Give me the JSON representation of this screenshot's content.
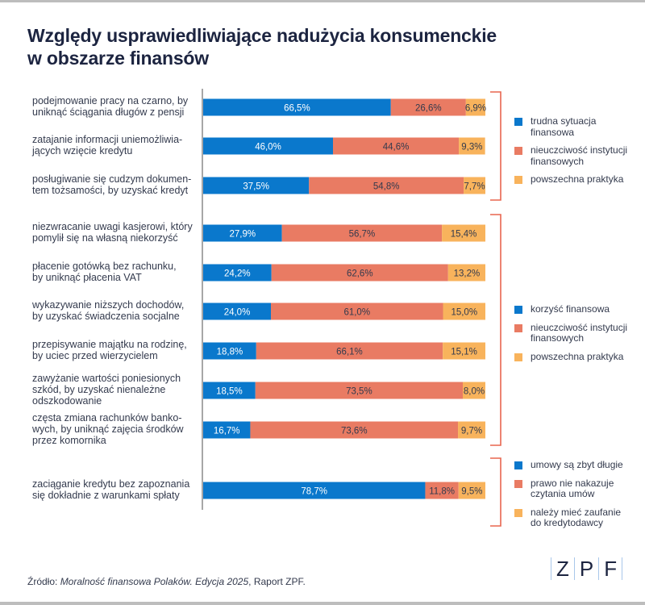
{
  "title": "Względy usprawiedliwiające nadużycia konsumenckie w obszarze finansów",
  "title_lines": [
    "Względy usprawiedliwiające nadużycia konsumenckie",
    "w obszarze finansów"
  ],
  "colors": {
    "blue": "#0a78cc",
    "salmon": "#e97b63",
    "amber": "#f8b35c",
    "bracket": "#e8664f",
    "axis": "#8a8a8a"
  },
  "chart_data": {
    "type": "bar",
    "orientation": "horizontal",
    "stacked": true,
    "title": "Względy usprawiedliwiające nadużycia konsumenckie w obszarze finansów",
    "xlabel": "",
    "ylabel": "",
    "xlim": [
      0,
      100
    ],
    "unit": "%",
    "grid": false,
    "categories": [
      [
        "podejmowanie pracy na czarno, by",
        "uniknąć ściągania długów z pensji"
      ],
      [
        "zatajanie informacji uniemożliwia-",
        "jących wzięcie kredytu"
      ],
      [
        "posługiwanie się cudzym dokumen-",
        "tem tożsamości, by uzyskać kredyt"
      ],
      [
        "niezwracanie uwagi kasjerowi, który",
        "pomylił się na własną niekorzyść"
      ],
      [
        "płacenie gotówką bez rachunku,",
        "by uniknąć płacenia VAT"
      ],
      [
        "wykazywanie niższych dochodów,",
        "by uzyskać świadczenia socjalne"
      ],
      [
        "przepisywanie majątku na rodzinę,",
        "by uciec przed wierzycielem"
      ],
      [
        "zawyżanie wartości poniesionych",
        "szkód, by uzyskać nienależne",
        "odszkodowanie"
      ],
      [
        "częsta zmiana rachunków banko-",
        "wych, by uniknąć zajęcia środków",
        "przez komornika"
      ],
      [
        "zaciąganie kredytu bez zapoznania",
        "się dokładnie z warunkami spłaty"
      ]
    ],
    "series": [
      {
        "name": "segment 1 (blue)",
        "values": [
          66.5,
          46.0,
          37.5,
          27.9,
          24.2,
          24.0,
          18.8,
          18.5,
          16.7,
          78.7
        ]
      },
      {
        "name": "segment 2 (salmon)",
        "values": [
          26.6,
          44.6,
          54.8,
          56.7,
          62.6,
          61.0,
          66.1,
          73.5,
          73.6,
          11.8
        ]
      },
      {
        "name": "segment 3 (amber)",
        "values": [
          6.9,
          9.3,
          7.7,
          15.4,
          13.2,
          15.0,
          15.1,
          8.0,
          9.7,
          9.5
        ]
      }
    ],
    "data_labels": [
      [
        "66,5%",
        "26,6%",
        "6,9%"
      ],
      [
        "46,0%",
        "44,6%",
        "9,3%"
      ],
      [
        "37,5%",
        "54,8%",
        "7,7%"
      ],
      [
        "27,9%",
        "56,7%",
        "15,4%"
      ],
      [
        "24,2%",
        "62,6%",
        "13,2%"
      ],
      [
        "24,0%",
        "61,0%",
        "15,0%"
      ],
      [
        "18,8%",
        "66,1%",
        "15,1%"
      ],
      [
        "18,5%",
        "73,5%",
        "8,0%"
      ],
      [
        "16,7%",
        "73,6%",
        "9,7%"
      ],
      [
        "78,7%",
        "11,8%",
        "9,5%"
      ]
    ],
    "groups": [
      {
        "rows": [
          0,
          1,
          2
        ],
        "legend": [
          "trudna sytuacja finansowa",
          "nieuczciwość instytucji finansowych",
          "powszechna praktyka"
        ]
      },
      {
        "rows": [
          3,
          4,
          5,
          6,
          7,
          8
        ],
        "legend": [
          "korzyść finansowa",
          "nieuczciwość instytucji finansowych",
          "powszechna praktyka"
        ]
      },
      {
        "rows": [
          9
        ],
        "legend": [
          "umowy są zbyt długie",
          "prawo nie nakazuje czytania umów",
          "należy mieć zaufanie do kredytodawcy"
        ]
      }
    ]
  },
  "legends": [
    {
      "items": [
        {
          "lines": [
            "trudna sytuacja",
            "finansowa"
          ],
          "color": "#0a78cc"
        },
        {
          "lines": [
            "nieuczciwość instytucji",
            "finansowych"
          ],
          "color": "#e97b63"
        },
        {
          "lines": [
            "powszechna praktyka"
          ],
          "color": "#f8b35c"
        }
      ]
    },
    {
      "items": [
        {
          "lines": [
            "korzyść finansowa"
          ],
          "color": "#0a78cc"
        },
        {
          "lines": [
            "nieuczciwość instytucji",
            "finansowych"
          ],
          "color": "#e97b63"
        },
        {
          "lines": [
            "powszechna praktyka"
          ],
          "color": "#f8b35c"
        }
      ]
    },
    {
      "items": [
        {
          "lines": [
            "umowy są zbyt długie"
          ],
          "color": "#0a78cc"
        },
        {
          "lines": [
            "prawo nie nakazuje",
            "czytania umów"
          ],
          "color": "#e97b63"
        },
        {
          "lines": [
            "należy mieć zaufanie",
            "do kredytodawcy"
          ],
          "color": "#f8b35c"
        }
      ]
    }
  ],
  "source": {
    "prefix": "Źródło: ",
    "italic": "Moralność finansowa Polaków. Edycja 2025",
    "suffix": ", Raport ZPF."
  },
  "logo": {
    "letters": [
      "Z",
      "P",
      "F"
    ]
  }
}
